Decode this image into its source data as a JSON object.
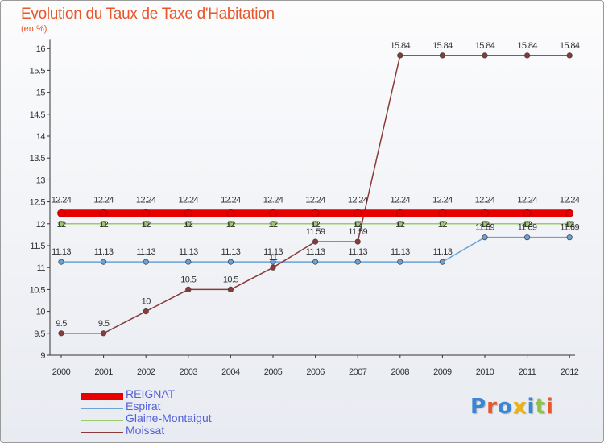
{
  "header": {
    "title": "Evolution du Taux de Taxe d'Habitation",
    "subtitle": "(en %)"
  },
  "logo": {
    "text": "Proxiti",
    "letter_colors": [
      "#3a86d4",
      "#e8562a",
      "#3a86d4",
      "#e8b417",
      "#3a86d4",
      "#8cc63f",
      "#e8562a"
    ]
  },
  "chart_data": {
    "type": "line",
    "x": [
      "2000",
      "2001",
      "2002",
      "2003",
      "2004",
      "2005",
      "2006",
      "2007",
      "2008",
      "2009",
      "2010",
      "2011",
      "2012"
    ],
    "ylim": [
      9,
      16.2
    ],
    "yticks": [
      9,
      9.5,
      10,
      10.5,
      11,
      11.5,
      12,
      12.5,
      13,
      13.5,
      14,
      14.5,
      15,
      15.5,
      16
    ],
    "ytick_labels": [
      "9",
      "9.5",
      "10",
      "10.5",
      "11",
      "11.5",
      "12",
      "12.5",
      "13",
      "13.5",
      "14",
      "14.5",
      "15",
      "15.5",
      "16"
    ],
    "grid": false,
    "legend_position": "bottom-left",
    "series": [
      {
        "name": "REIGNAT",
        "color": "#e60000",
        "values": [
          12.24,
          12.24,
          12.24,
          12.24,
          12.24,
          12.24,
          12.24,
          12.24,
          12.24,
          12.24,
          12.24,
          12.24,
          12.24
        ],
        "labels": [
          "12.24",
          "12.24",
          "12.24",
          "12.24",
          "12.24",
          "12.24",
          "12.24",
          "12.24",
          "12.24",
          "12.24",
          "12.24",
          "12.24",
          "12.24"
        ]
      },
      {
        "name": "Espirat",
        "color": "#6ba3d6",
        "values": [
          11.13,
          11.13,
          11.13,
          11.13,
          11.13,
          11.13,
          11.13,
          11.13,
          11.13,
          11.13,
          11.69,
          11.69,
          11.69
        ],
        "labels": [
          "11.13",
          "11.13",
          "11.13",
          "11.13",
          "11.13",
          "11.13",
          "11.13",
          "11.13",
          "11.13",
          "11.13",
          "11.69",
          "11.69",
          "11.69"
        ]
      },
      {
        "name": "Glaine-Montaigut",
        "color": "#99cc66",
        "values": [
          12,
          12,
          12,
          12,
          12,
          12,
          12,
          12,
          12,
          12,
          12,
          12,
          12
        ],
        "labels": [
          "12",
          "12",
          "12",
          "12",
          "12",
          "12",
          "12",
          "12",
          "12",
          "12",
          "12",
          "12",
          "12"
        ]
      },
      {
        "name": "Moissat",
        "color": "#8b3a3a",
        "values": [
          9.5,
          9.5,
          10,
          10.5,
          10.5,
          11,
          11.59,
          11.59,
          15.84,
          15.84,
          15.84,
          15.84,
          15.84
        ],
        "labels": [
          "9.5",
          "9.5",
          "10",
          "10.5",
          "10.5",
          "11",
          "11.59",
          "11.59",
          "15.84",
          "15.84",
          "15.84",
          "15.84",
          "15.84"
        ]
      }
    ]
  }
}
